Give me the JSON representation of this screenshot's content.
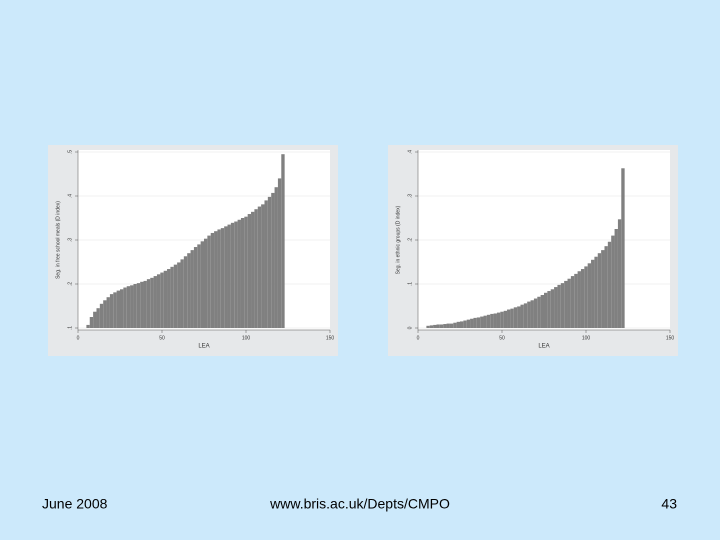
{
  "chart_data": [
    {
      "type": "bar",
      "xlabel": "LEA",
      "ylabel": "Seg. in free school meals (D index)",
      "color": "#808080",
      "grid": true,
      "x": [
        6,
        8,
        10,
        12,
        14,
        16,
        18,
        20,
        22,
        24,
        26,
        28,
        30,
        32,
        34,
        36,
        38,
        40,
        42,
        44,
        46,
        48,
        50,
        52,
        54,
        56,
        58,
        60,
        62,
        64,
        66,
        68,
        70,
        72,
        74,
        76,
        78,
        80,
        82,
        84,
        86,
        88,
        90,
        92,
        94,
        96,
        98,
        100,
        102,
        104,
        106,
        108,
        110,
        112,
        114,
        116,
        118,
        120,
        122
      ],
      "values": [
        0.107,
        0.125,
        0.137,
        0.145,
        0.155,
        0.163,
        0.17,
        0.177,
        0.181,
        0.185,
        0.188,
        0.192,
        0.195,
        0.197,
        0.2,
        0.202,
        0.205,
        0.207,
        0.211,
        0.214,
        0.218,
        0.222,
        0.226,
        0.23,
        0.234,
        0.239,
        0.244,
        0.249,
        0.256,
        0.263,
        0.27,
        0.277,
        0.284,
        0.29,
        0.297,
        0.303,
        0.31,
        0.316,
        0.32,
        0.324,
        0.327,
        0.331,
        0.335,
        0.339,
        0.342,
        0.346,
        0.35,
        0.353,
        0.359,
        0.364,
        0.37,
        0.376,
        0.381,
        0.39,
        0.398,
        0.407,
        0.42,
        0.44,
        0.495
      ],
      "xlim": [
        0,
        150
      ],
      "xticks": [
        0,
        50,
        100,
        150
      ],
      "ylim": [
        0.1,
        0.5
      ],
      "yticks": [
        {
          "value": 0.1,
          "label": ".1"
        },
        {
          "value": 0.2,
          "label": ".2"
        },
        {
          "value": 0.3,
          "label": ".3"
        },
        {
          "value": 0.4,
          "label": ".4"
        },
        {
          "value": 0.5,
          "label": ".5"
        }
      ]
    },
    {
      "type": "bar",
      "xlabel": "LEA",
      "ylabel": "Seg. in ethnic groups (D index)",
      "color": "#808080",
      "grid": true,
      "x": [
        6,
        8,
        10,
        12,
        14,
        16,
        18,
        20,
        22,
        24,
        26,
        28,
        30,
        32,
        34,
        36,
        38,
        40,
        42,
        44,
        46,
        48,
        50,
        52,
        54,
        56,
        58,
        60,
        62,
        64,
        66,
        68,
        70,
        72,
        74,
        76,
        78,
        80,
        82,
        84,
        86,
        88,
        90,
        92,
        94,
        96,
        98,
        100,
        102,
        104,
        106,
        108,
        110,
        112,
        114,
        116,
        118,
        120,
        122
      ],
      "values": [
        0.005,
        0.006,
        0.007,
        0.008,
        0.008,
        0.009,
        0.01,
        0.01,
        0.012,
        0.014,
        0.015,
        0.017,
        0.019,
        0.021,
        0.023,
        0.024,
        0.026,
        0.028,
        0.03,
        0.032,
        0.033,
        0.035,
        0.037,
        0.039,
        0.042,
        0.044,
        0.047,
        0.049,
        0.053,
        0.056,
        0.06,
        0.063,
        0.067,
        0.071,
        0.075,
        0.08,
        0.084,
        0.088,
        0.093,
        0.098,
        0.102,
        0.107,
        0.112,
        0.118,
        0.123,
        0.129,
        0.134,
        0.14,
        0.147,
        0.155,
        0.162,
        0.17,
        0.177,
        0.186,
        0.196,
        0.21,
        0.225,
        0.247,
        0.363
      ],
      "xlim": [
        0,
        150
      ],
      "xticks": [
        0,
        50,
        100,
        150
      ],
      "ylim": [
        0,
        0.4
      ],
      "yticks": [
        0,
        {
          "value": 0.1,
          "label": ".1"
        },
        {
          "value": 0.2,
          "label": ".2"
        },
        {
          "value": 0.3,
          "label": ".3"
        },
        {
          "value": 0.4,
          "label": ".4"
        }
      ]
    }
  ],
  "footer": {
    "date": "June 2008",
    "url": "www.bris.ac.uk/Depts/CMPO",
    "page": "43"
  }
}
